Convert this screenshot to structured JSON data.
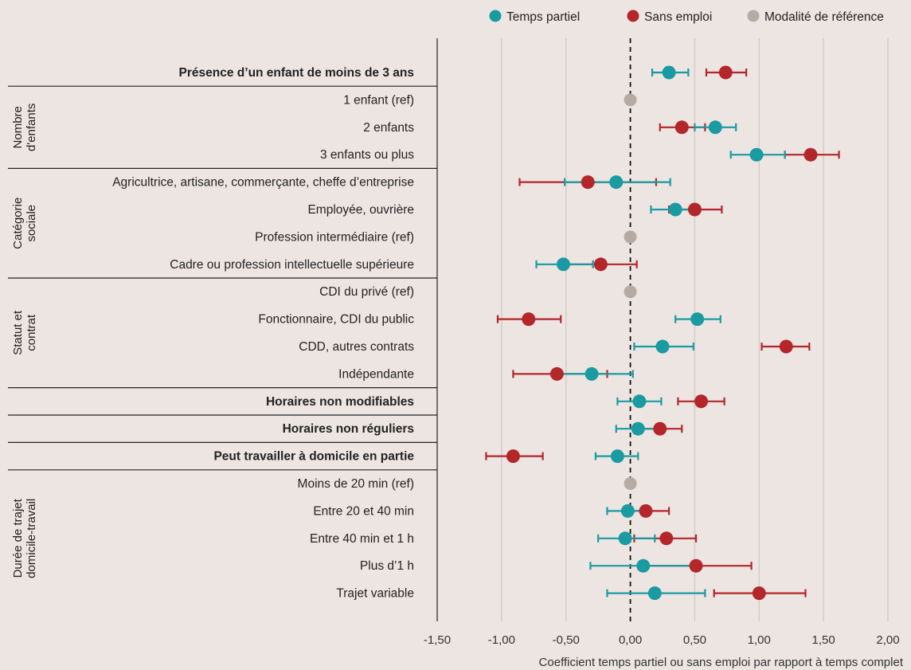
{
  "chart_data": {
    "type": "scatter",
    "subtype": "coefficient-plot-with-confidence-intervals",
    "xlabel": "Coefficient temps partiel ou sans emploi par rapport à temps complet",
    "xlim": [
      -1.5,
      2.0
    ],
    "xticks": [
      -1.5,
      -1.0,
      -0.5,
      0.0,
      0.5,
      1.0,
      1.5,
      2.0
    ],
    "xtick_labels": [
      "-1,50",
      "-1,00",
      "-0,50",
      "0,00",
      "0,50",
      "1,00",
      "1,50",
      "2,00"
    ],
    "reference_line": 0,
    "grid": "vertical",
    "legend_position": "top-right",
    "series": [
      {
        "name": "Temps partiel",
        "color": "#1a9ba1"
      },
      {
        "name": "Sans emploi",
        "color": "#b3262a"
      },
      {
        "name": "Modalité de référence",
        "color": "#b7aaa3"
      }
    ],
    "groups": [
      {
        "label": "",
        "rows": [
          0
        ]
      },
      {
        "label": "Nombre d'enfants",
        "rows": [
          1,
          2,
          3
        ]
      },
      {
        "label": "Catégorie sociale",
        "rows": [
          4,
          5,
          6,
          7
        ]
      },
      {
        "label": "Statut et contrat",
        "rows": [
          8,
          9,
          10,
          11
        ]
      },
      {
        "label": "",
        "rows": [
          12
        ]
      },
      {
        "label": "",
        "rows": [
          13
        ]
      },
      {
        "label": "",
        "rows": [
          14
        ]
      },
      {
        "label": "Durée de trajet domicile-travail",
        "rows": [
          15,
          16,
          17,
          18,
          19
        ]
      }
    ],
    "rows": [
      {
        "label": "Présence d’un enfant de moins de 3 ans",
        "bold": true,
        "partiel": {
          "value": 0.3,
          "lo": 0.17,
          "hi": 0.45
        },
        "sans_emploi": {
          "value": 0.74,
          "lo": 0.59,
          "hi": 0.9
        }
      },
      {
        "label": "1 enfant (ref)",
        "ref": true
      },
      {
        "label": "2 enfants",
        "partiel": {
          "value": 0.66,
          "lo": 0.5,
          "hi": 0.82
        },
        "sans_emploi": {
          "value": 0.4,
          "lo": 0.23,
          "hi": 0.58
        }
      },
      {
        "label": "3 enfants ou plus",
        "partiel": {
          "value": 0.98,
          "lo": 0.78,
          "hi": 1.2
        },
        "sans_emploi": {
          "value": 1.4,
          "lo": 1.2,
          "hi": 1.62
        }
      },
      {
        "label": "Agricultrice, artisane, commerçante, cheffe d’entreprise",
        "partiel": {
          "value": -0.11,
          "lo": -0.51,
          "hi": 0.31
        },
        "sans_emploi": {
          "value": -0.33,
          "lo": -0.86,
          "hi": 0.2
        }
      },
      {
        "label": "Employée, ouvrière",
        "partiel": {
          "value": 0.35,
          "lo": 0.16,
          "hi": 0.54
        },
        "sans_emploi": {
          "value": 0.5,
          "lo": 0.3,
          "hi": 0.71
        }
      },
      {
        "label": "Profession intermédiaire (ref)",
        "ref": true
      },
      {
        "label": "Cadre ou profession intellectuelle supérieure",
        "partiel": {
          "value": -0.52,
          "lo": -0.73,
          "hi": -0.29
        },
        "sans_emploi": {
          "value": -0.23,
          "lo": -0.51,
          "hi": 0.05
        }
      },
      {
        "label": "CDI du privé (ref)",
        "ref": true
      },
      {
        "label": "Fonctionnaire, CDI du public",
        "partiel": {
          "value": 0.52,
          "lo": 0.35,
          "hi": 0.7
        },
        "sans_emploi": {
          "value": -0.79,
          "lo": -1.03,
          "hi": -0.54
        }
      },
      {
        "label": "CDD, autres contrats",
        "partiel": {
          "value": 0.25,
          "lo": 0.03,
          "hi": 0.49
        },
        "sans_emploi": {
          "value": 1.21,
          "lo": 1.02,
          "hi": 1.39
        }
      },
      {
        "label": "Indépendante",
        "partiel": {
          "value": -0.3,
          "lo": -0.58,
          "hi": 0.02
        },
        "sans_emploi": {
          "value": -0.57,
          "lo": -0.91,
          "hi": -0.18
        }
      },
      {
        "label": "Horaires non modifiables",
        "bold": true,
        "partiel": {
          "value": 0.07,
          "lo": -0.1,
          "hi": 0.24
        },
        "sans_emploi": {
          "value": 0.55,
          "lo": 0.37,
          "hi": 0.73
        }
      },
      {
        "label": "Horaires non réguliers",
        "bold": true,
        "partiel": {
          "value": 0.06,
          "lo": -0.11,
          "hi": 0.22
        },
        "sans_emploi": {
          "value": 0.23,
          "lo": 0.05,
          "hi": 0.4
        }
      },
      {
        "label": "Peut travailler à domicile en partie",
        "bold": true,
        "partiel": {
          "value": -0.1,
          "lo": -0.27,
          "hi": 0.06
        },
        "sans_emploi": {
          "value": -0.91,
          "lo": -1.12,
          "hi": -0.68
        }
      },
      {
        "label": "Moins de 20 min (ref)",
        "ref": true
      },
      {
        "label": "Entre 20 et 40 min",
        "partiel": {
          "value": -0.02,
          "lo": -0.18,
          "hi": 0.13
        },
        "sans_emploi": {
          "value": 0.12,
          "lo": -0.05,
          "hi": 0.3
        }
      },
      {
        "label": "Entre 40 min et 1 h",
        "partiel": {
          "value": -0.04,
          "lo": -0.25,
          "hi": 0.19
        },
        "sans_emploi": {
          "value": 0.28,
          "lo": 0.03,
          "hi": 0.51
        }
      },
      {
        "label": "Plus d’1 h",
        "partiel": {
          "value": 0.1,
          "lo": -0.31,
          "hi": 0.52
        },
        "sans_emploi": {
          "value": 0.51,
          "lo": 0.09,
          "hi": 0.94
        }
      },
      {
        "label": "Trajet variable",
        "partiel": {
          "value": 0.19,
          "lo": -0.18,
          "hi": 0.58
        },
        "sans_emploi": {
          "value": 1.0,
          "lo": 0.65,
          "hi": 1.36
        }
      }
    ]
  }
}
